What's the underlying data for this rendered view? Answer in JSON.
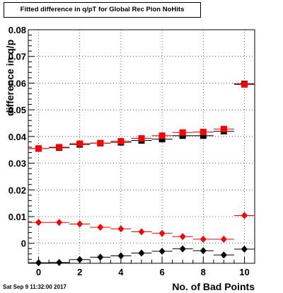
{
  "chart_data": {
    "type": "scatter",
    "title": "Fitted difference in q/pT for Global Rec Pion NoHits",
    "xlabel": "No. of Bad Points",
    "ylabel": "difference in q/p",
    "xlim": [
      -0.5,
      10.5
    ],
    "ylim": [
      -0.0075,
      0.08
    ],
    "x_ticks": [
      "0",
      "2",
      "4",
      "6",
      "8",
      "10"
    ],
    "y_ticks": [
      "0",
      "0.01",
      "0.02",
      "0.03",
      "0.04",
      "0.05",
      "0.06",
      "0.07",
      "0.08"
    ],
    "grid": true,
    "legend": "none",
    "series": [
      {
        "marker": "square",
        "color": "#000000",
        "x": [
          0,
          1,
          2,
          3,
          4,
          5,
          6,
          7,
          8,
          9,
          10
        ],
        "y": [
          0.0355,
          0.0358,
          0.037,
          0.0375,
          0.0378,
          0.0385,
          0.039,
          0.0403,
          0.0403,
          0.042,
          0.0597
        ]
      },
      {
        "marker": "square",
        "color": "#ff0000",
        "x": [
          0,
          1,
          2,
          3,
          4,
          5,
          6,
          7,
          8,
          9,
          10
        ],
        "y": [
          0.0355,
          0.036,
          0.0373,
          0.0375,
          0.0382,
          0.0393,
          0.0403,
          0.0415,
          0.0417,
          0.0428,
          0.0595
        ]
      },
      {
        "marker": "diamond",
        "color": "#ff0000",
        "x": [
          0,
          1,
          2,
          3,
          4,
          5,
          6,
          7,
          8,
          9,
          10
        ],
        "y": [
          0.0078,
          0.0078,
          0.0072,
          0.006,
          0.0054,
          0.0043,
          0.0037,
          0.0025,
          0.0015,
          0.0015,
          0.0104
        ]
      },
      {
        "marker": "diamond",
        "color": "#000000",
        "x": [
          0,
          1,
          2,
          3,
          4,
          5,
          6,
          7,
          8,
          9,
          10
        ],
        "y": [
          -0.0073,
          -0.0072,
          -0.0061,
          -0.0052,
          -0.0047,
          -0.0037,
          -0.003,
          -0.0021,
          -0.0028,
          -0.0044,
          -0.0022
        ]
      }
    ]
  },
  "footer_timestamp": "Sat Sep  9 11:32:00 2017"
}
